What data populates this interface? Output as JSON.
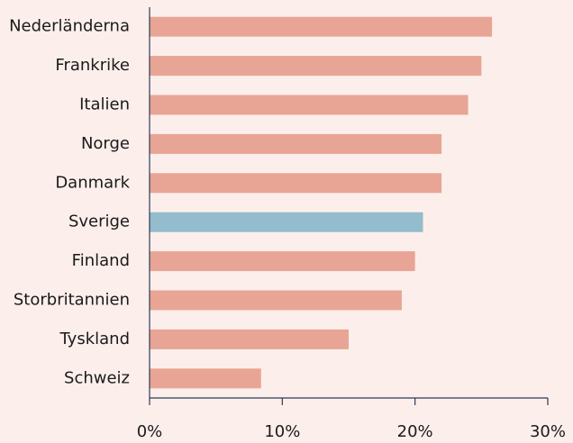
{
  "chart_data": {
    "type": "hbar",
    "categories": [
      "Nederländerna",
      "Frankrike",
      "Italien",
      "Norge",
      "Danmark",
      "Sverige",
      "Finland",
      "Storbritannien",
      "Tyskland",
      "Schweiz"
    ],
    "values": [
      25.8,
      25,
      24,
      22,
      22,
      20.6,
      20,
      19,
      15,
      8.4
    ],
    "colors": [
      "#e8a595",
      "#e8a595",
      "#e8a595",
      "#e8a595",
      "#e8a595",
      "#93bccc",
      "#e8a595",
      "#e8a595",
      "#e8a595",
      "#e8a595"
    ],
    "xlim": [
      0,
      30
    ],
    "xticks": [
      {
        "value": 0,
        "label": "0%"
      },
      {
        "value": 10,
        "label": "10%"
      },
      {
        "value": 20,
        "label": "20%"
      },
      {
        "value": 30,
        "label": "30%"
      }
    ],
    "grid": false
  }
}
